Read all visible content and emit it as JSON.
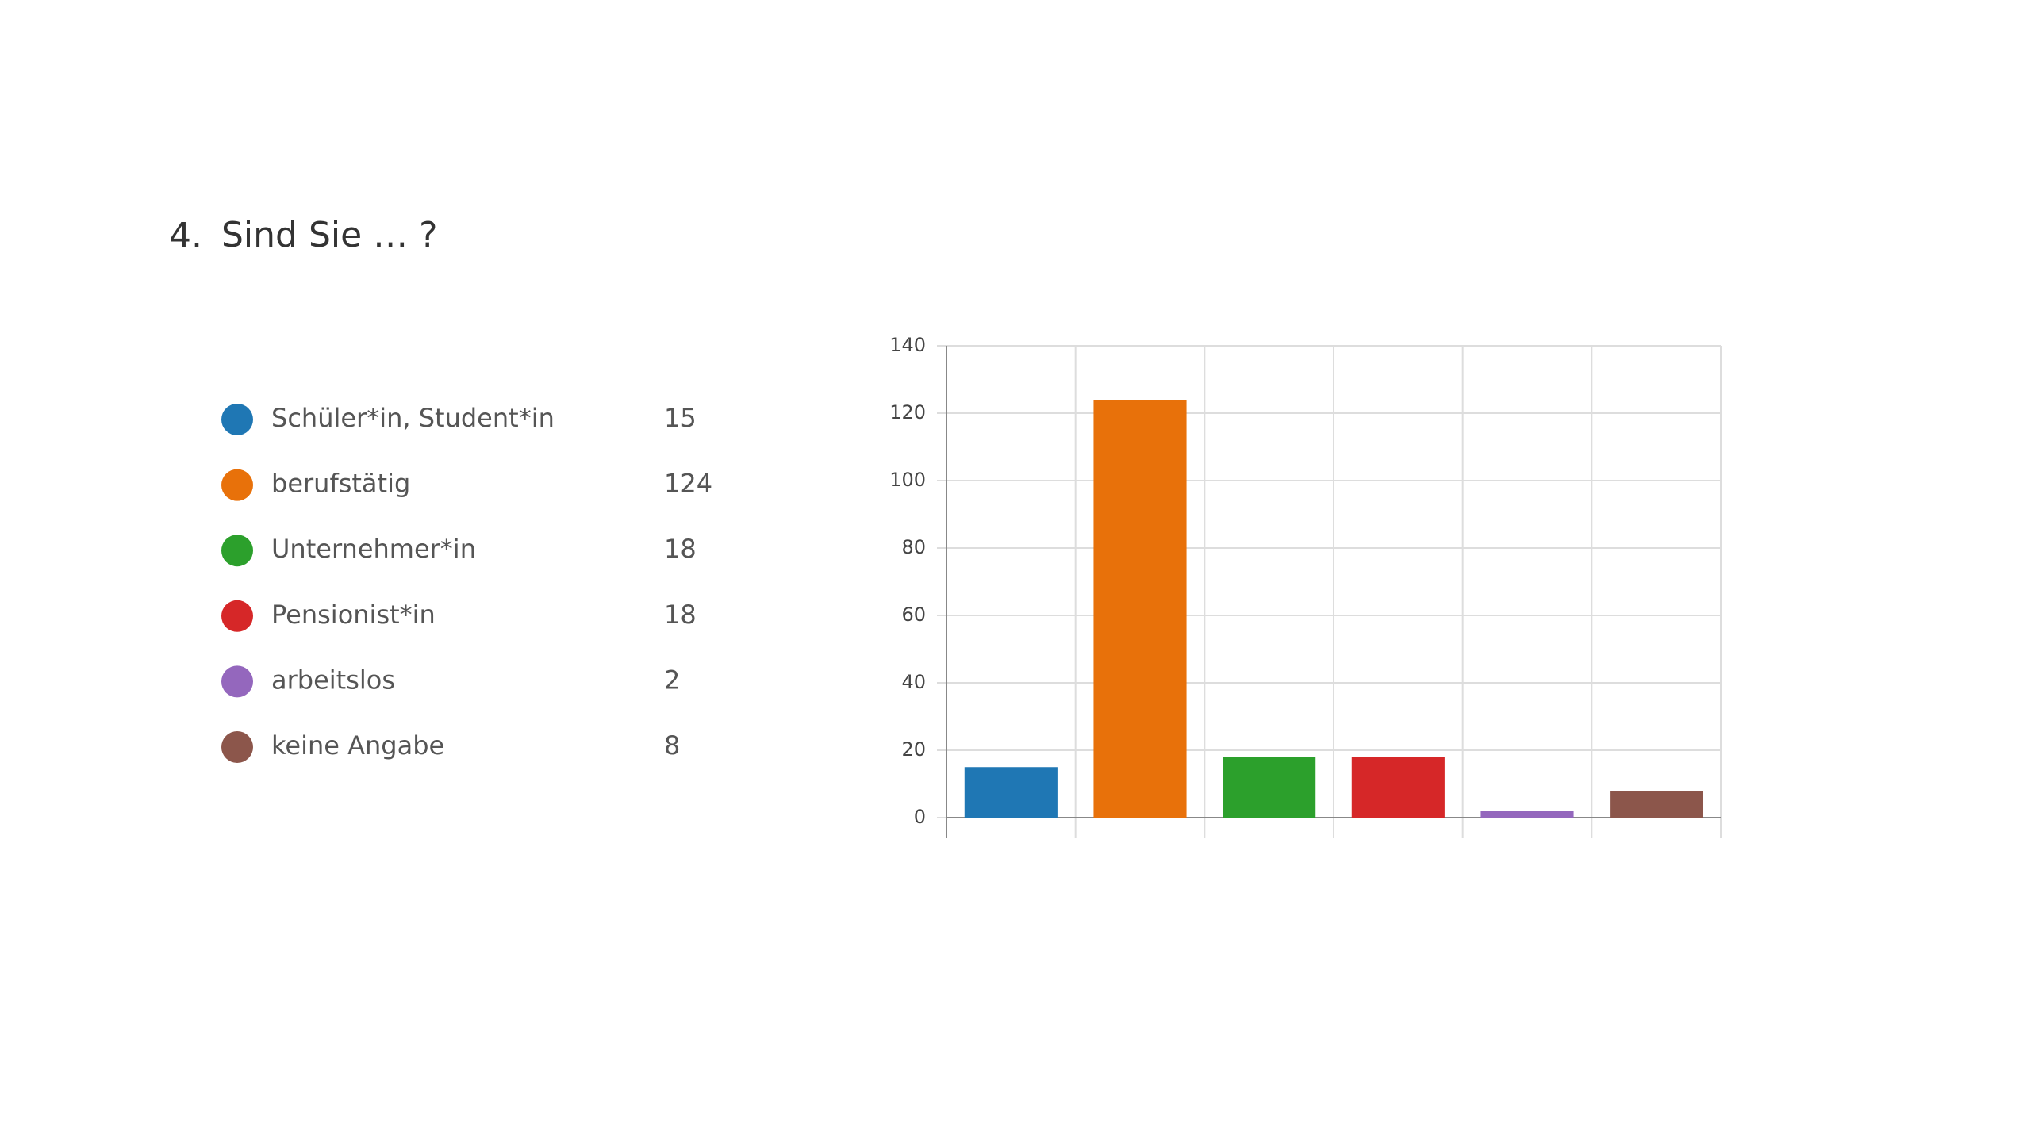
{
  "question_number": "4.",
  "chart_data": {
    "type": "bar",
    "title": "Sind Sie … ?",
    "categories": [
      "Schüler*in, Student*in",
      "berufstätig",
      "Unternehmer*in",
      "Pensionist*in",
      "arbeitslos",
      "keine Angabe"
    ],
    "values": [
      15,
      124,
      18,
      18,
      2,
      8
    ],
    "colors": [
      "#1f77b4",
      "#e8710a",
      "#2ca02c",
      "#d62728",
      "#9467bd",
      "#8c564b"
    ],
    "ylim": [
      0,
      140
    ],
    "yticks": [
      0,
      20,
      40,
      60,
      80,
      100,
      120,
      140
    ],
    "grid": true
  }
}
